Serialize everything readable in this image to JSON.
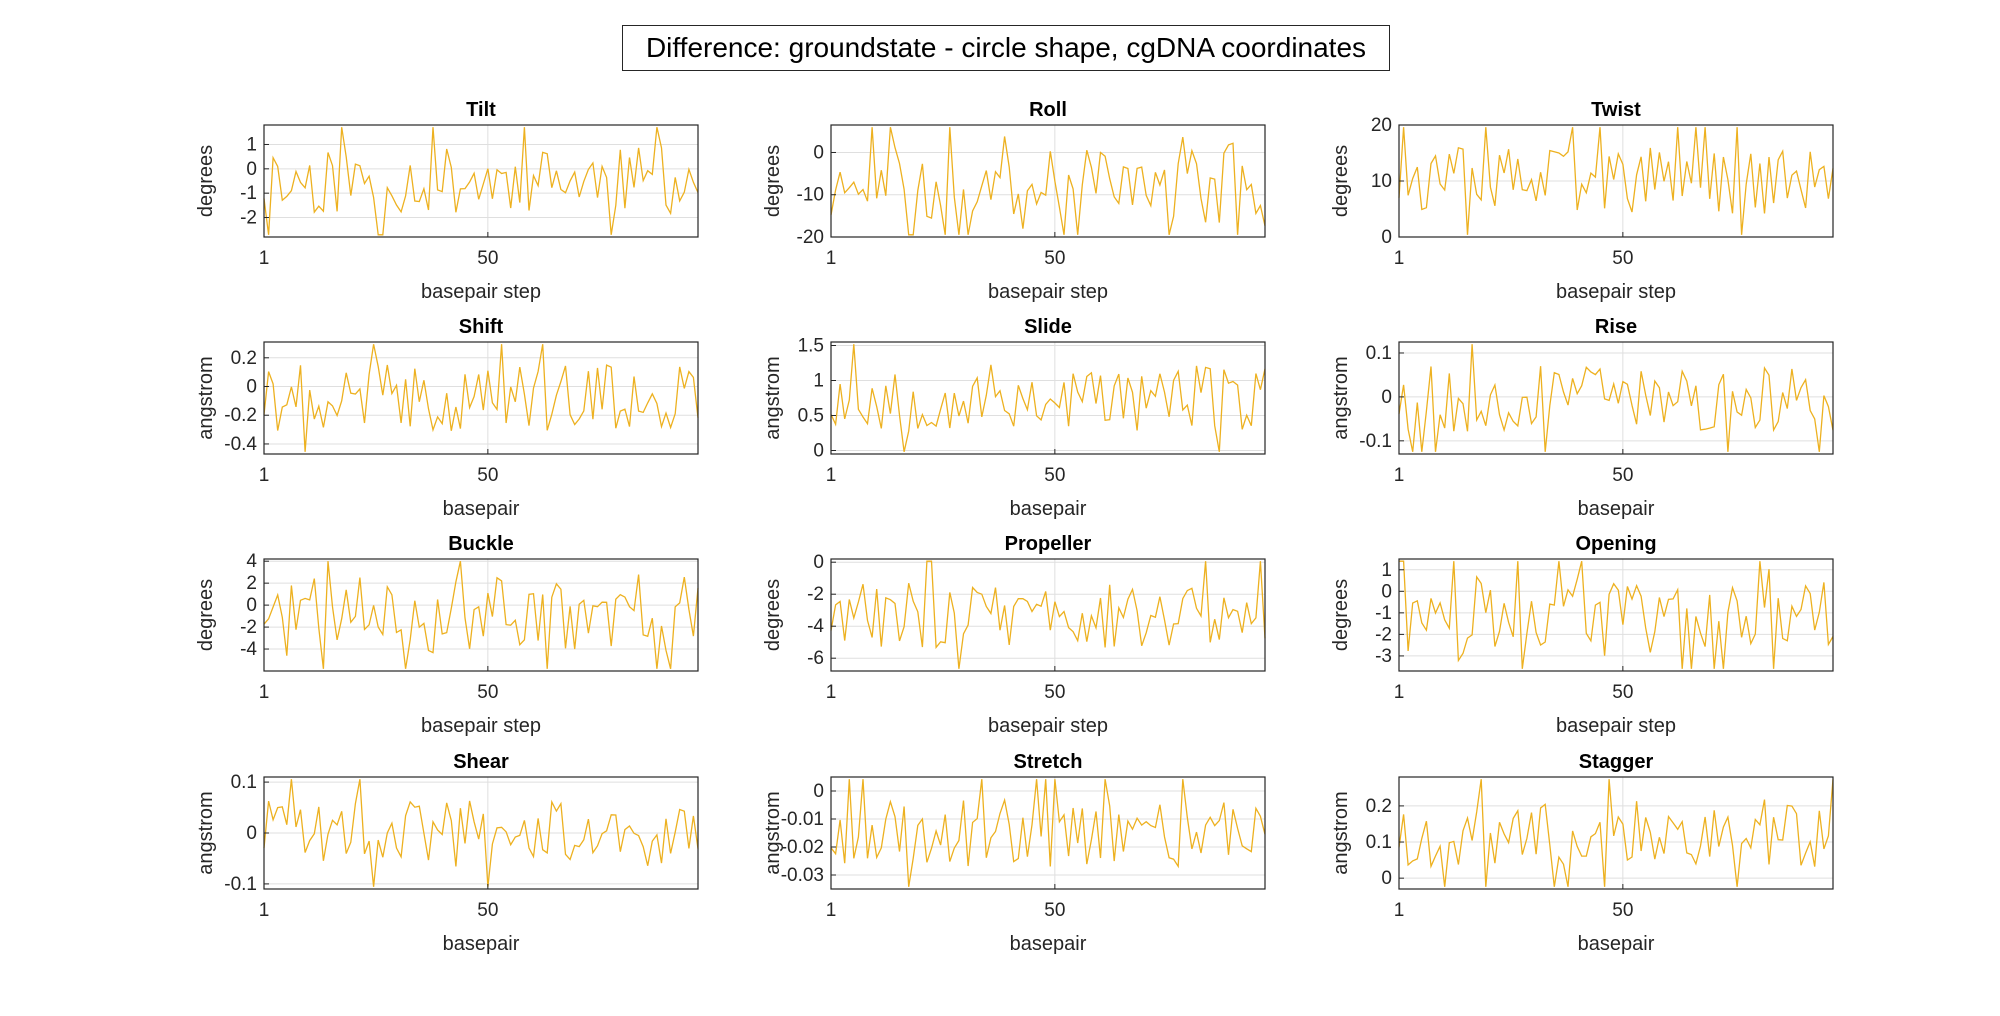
{
  "figure": {
    "suptitle": "Difference: groundstate - circle shape, cgDNA coordinates",
    "line_color": "#EDB120"
  },
  "chart_data": [
    {
      "type": "line",
      "title": "Tilt",
      "xlabel": "basepair step",
      "ylabel": "degrees",
      "xlim": [
        1,
        96
      ],
      "ylim": [
        -2.8,
        1.8
      ],
      "yticks": [
        -2,
        -1,
        0,
        1
      ],
      "xticks": [
        1,
        50
      ],
      "grid": true,
      "seed": 11,
      "amp": 1.8,
      "osc": 0.0
    },
    {
      "type": "line",
      "title": "Roll",
      "xlabel": "basepair step",
      "ylabel": "degrees",
      "xlim": [
        1,
        96
      ],
      "ylim": [
        -20,
        6.5
      ],
      "yticks": [
        -20,
        -10,
        0
      ],
      "xticks": [
        1,
        50
      ],
      "grid": true,
      "seed": 23,
      "amp": 4.0,
      "osc": 8.0
    },
    {
      "type": "line",
      "title": "Twist",
      "xlabel": "basepair step",
      "ylabel": "degrees",
      "xlim": [
        1,
        96
      ],
      "ylim": [
        0,
        20
      ],
      "yticks": [
        0,
        10,
        20
      ],
      "xticks": [
        1,
        50
      ],
      "grid": true,
      "seed": 37,
      "amp": 3.0,
      "osc": 0.0
    },
    {
      "type": "line",
      "title": "Shift",
      "xlabel": "basepair",
      "ylabel": "angstrom",
      "xlim": [
        1,
        96
      ],
      "ylim": [
        -0.47,
        0.31
      ],
      "yticks": [
        -0.4,
        -0.2,
        0,
        0.2
      ],
      "xticks": [
        1,
        50
      ],
      "grid": true,
      "seed": 41,
      "amp": 0.2,
      "osc": 0.0
    },
    {
      "type": "line",
      "title": "Slide",
      "xlabel": "basepair",
      "ylabel": "angstrom",
      "xlim": [
        1,
        96
      ],
      "ylim": [
        -0.05,
        1.55
      ],
      "yticks": [
        0,
        0.5,
        1,
        1.5
      ],
      "xticks": [
        1,
        50
      ],
      "grid": true,
      "seed": 53,
      "amp": 0.3,
      "osc": 0.0
    },
    {
      "type": "line",
      "title": "Rise",
      "xlabel": "basepair",
      "ylabel": "angstrom",
      "xlim": [
        1,
        96
      ],
      "ylim": [
        -0.13,
        0.125
      ],
      "yticks": [
        -0.1,
        0,
        0.1
      ],
      "xticks": [
        1,
        50
      ],
      "grid": true,
      "seed": 67,
      "amp": 0.08,
      "osc": 0.0
    },
    {
      "type": "line",
      "title": "Buckle",
      "xlabel": "basepair step",
      "ylabel": "degrees",
      "xlim": [
        1,
        96
      ],
      "ylim": [
        -6,
        4.2
      ],
      "yticks": [
        -4,
        -2,
        0,
        2,
        4
      ],
      "xticks": [
        1,
        50
      ],
      "grid": true,
      "seed": 71,
      "amp": 2.0,
      "osc": 2.0
    },
    {
      "type": "line",
      "title": "Propeller",
      "xlabel": "basepair step",
      "ylabel": "degrees",
      "xlim": [
        1,
        96
      ],
      "ylim": [
        -6.8,
        0.2
      ],
      "yticks": [
        -6,
        -4,
        -2,
        0
      ],
      "xticks": [
        1,
        50
      ],
      "grid": true,
      "seed": 83,
      "amp": 1.5,
      "osc": 0.0
    },
    {
      "type": "line",
      "title": "Opening",
      "xlabel": "basepair step",
      "ylabel": "degrees",
      "xlim": [
        1,
        96
      ],
      "ylim": [
        -3.7,
        1.5
      ],
      "yticks": [
        -3,
        -2,
        -1,
        0,
        1
      ],
      "xticks": [
        1,
        50
      ],
      "grid": true,
      "seed": 97,
      "amp": 0.8,
      "osc": 1.2
    },
    {
      "type": "line",
      "title": "Shear",
      "xlabel": "basepair",
      "ylabel": "angstrom",
      "xlim": [
        1,
        96
      ],
      "ylim": [
        -0.11,
        0.11
      ],
      "yticks": [
        -0.1,
        0,
        0.1
      ],
      "xticks": [
        1,
        50
      ],
      "grid": true,
      "seed": 101,
      "amp": 0.05,
      "osc": 0.0
    },
    {
      "type": "line",
      "title": "Stretch",
      "xlabel": "basepair",
      "ylabel": "angstrom",
      "xlim": [
        1,
        96
      ],
      "ylim": [
        -0.035,
        0.005
      ],
      "yticks": [
        -0.03,
        -0.02,
        -0.01,
        0
      ],
      "xticks": [
        1,
        50
      ],
      "grid": true,
      "seed": 113,
      "amp": 0.01,
      "osc": 0.0
    },
    {
      "type": "line",
      "title": "Stagger",
      "xlabel": "basepair",
      "ylabel": "angstrom",
      "xlim": [
        1,
        96
      ],
      "ylim": [
        -0.03,
        0.28
      ],
      "yticks": [
        0,
        0.1,
        0.2
      ],
      "xticks": [
        1,
        50
      ],
      "grid": true,
      "seed": 127,
      "amp": 0.07,
      "osc": 0.0
    }
  ]
}
